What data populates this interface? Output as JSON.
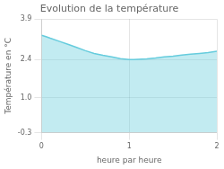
{
  "chart_data": {
    "type": "area",
    "title": "Evolution de la température",
    "xlabel": "heure par heure",
    "ylabel": "Température en °C",
    "x": [
      0,
      0.05,
      0.1,
      0.2,
      0.3,
      0.4,
      0.5,
      0.6,
      0.7,
      0.8,
      0.9,
      1.0,
      1.05,
      1.1,
      1.2,
      1.3,
      1.4,
      1.5,
      1.6,
      1.7,
      1.8,
      1.9,
      2.0
    ],
    "values": [
      3.3,
      3.25,
      3.19,
      3.08,
      2.97,
      2.85,
      2.73,
      2.63,
      2.56,
      2.5,
      2.44,
      2.4,
      2.4,
      2.41,
      2.43,
      2.46,
      2.5,
      2.53,
      2.57,
      2.6,
      2.63,
      2.66,
      2.71
    ],
    "color": "#66ccdd",
    "xlim": [
      0,
      2
    ],
    "xticks": [
      0,
      1,
      2
    ],
    "ylim": [
      -0.3,
      3.9
    ],
    "yticks": [
      -0.3,
      {
        "value": 1.0,
        "label": "1.0"
      },
      2.4,
      3.9
    ],
    "grid": true
  }
}
